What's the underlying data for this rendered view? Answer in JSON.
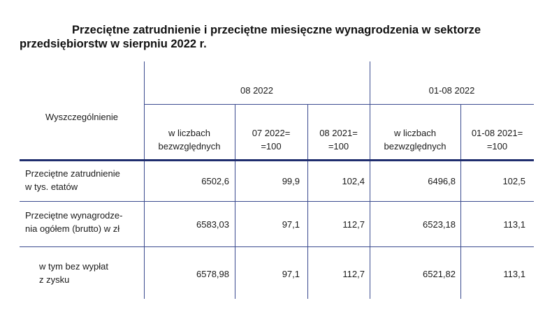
{
  "title": {
    "line1": "Przeciętne zatrudnienie i przeciętne miesięczne wynagrodzenia w sektorze",
    "line2": "przedsiębiorstw w sierpniu 2022 r."
  },
  "table": {
    "row_header_label": "Wyszczególnienie",
    "group_headers": [
      "08 2022",
      "01-08 2022"
    ],
    "sub_headers": [
      "w liczbach\nbezwzględnych",
      "07 2022=\n=100",
      "08 2021=\n=100",
      "w liczbach\nbezwzględnych",
      "01-08 2021=\n=100"
    ],
    "rows": [
      {
        "label": "Przeciętne zatrudnienie\nw tys. etatów",
        "values": [
          "6502,6",
          "99,9",
          "102,4",
          "6496,8",
          "102,5"
        ]
      },
      {
        "label": "Przeciętne wynagrodze-\nnia ogółem (brutto) w zł",
        "values": [
          "6583,03",
          "97,1",
          "112,7",
          "6523,18",
          "113,1"
        ]
      },
      {
        "label": "w tym bez wypłat\nz zysku",
        "values": [
          "6578,98",
          "97,1",
          "112,7",
          "6521,82",
          "113,1"
        ]
      }
    ]
  }
}
